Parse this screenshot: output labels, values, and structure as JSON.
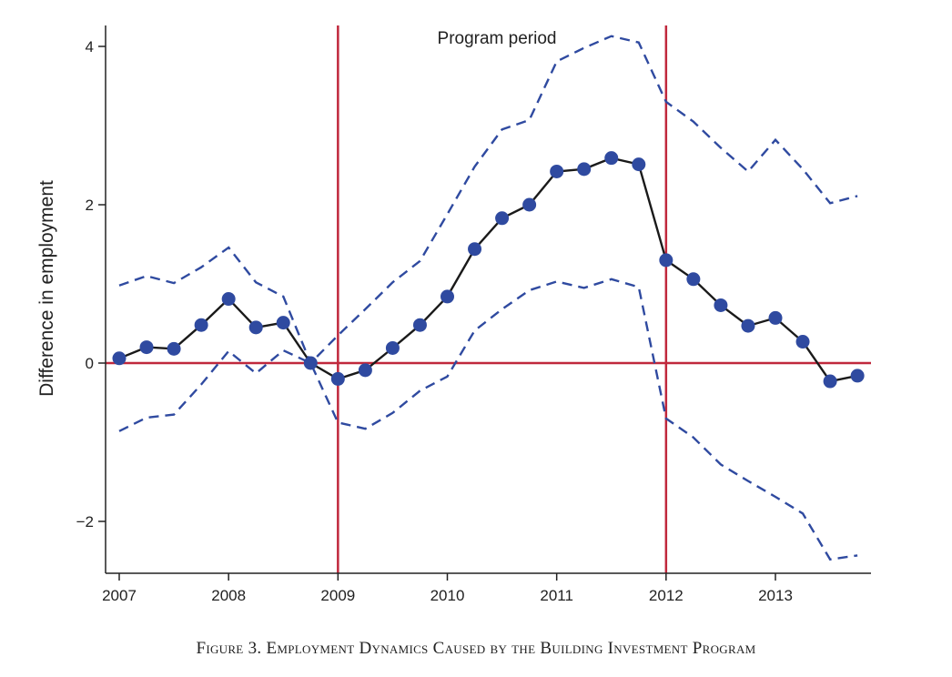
{
  "caption": "Figure 3. Employment Dynamics Caused by the Building Investment Program",
  "colors": {
    "point_line": "#1a1a1a",
    "point_fill": "#2f4aa0",
    "ci_line": "#2f4aa0",
    "reference_line": "#c0283c",
    "axis": "#222222"
  },
  "chart_data": {
    "type": "line",
    "ylabel": "Difference in employment",
    "xlabel": "",
    "annotation": "Program period",
    "xlim": [
      2006.9,
      2013.85
    ],
    "ylim": [
      -2.6,
      4.2
    ],
    "x_ticks": [
      {
        "value": 2007,
        "label": "2007"
      },
      {
        "value": 2008,
        "label": "2008"
      },
      {
        "value": 2009,
        "label": "2009"
      },
      {
        "value": 2010,
        "label": "2010"
      },
      {
        "value": 2011,
        "label": "2011"
      },
      {
        "value": 2012,
        "label": "2012"
      },
      {
        "value": 2013,
        "label": "2013"
      }
    ],
    "y_ticks": [
      {
        "value": -2,
        "label": "−2"
      },
      {
        "value": 0,
        "label": "0"
      },
      {
        "value": 2,
        "label": "2"
      },
      {
        "value": 4,
        "label": "4"
      }
    ],
    "vertical_lines": [
      2009,
      2012
    ],
    "horizontal_lines": [
      0
    ],
    "x": [
      2007,
      2007.25,
      2007.5,
      2007.75,
      2008,
      2008.25,
      2008.5,
      2008.75,
      2009,
      2009.25,
      2009.5,
      2009.75,
      2010,
      2010.25,
      2010.5,
      2010.75,
      2011,
      2011.25,
      2011.5,
      2011.75,
      2012,
      2012.25,
      2012.5,
      2012.75,
      2013,
      2013.25,
      2013.5,
      2013.75
    ],
    "series": [
      {
        "role": "estimate",
        "style": "solid-markers",
        "values": [
          0.06,
          0.2,
          0.18,
          0.48,
          0.81,
          0.45,
          0.51,
          0.0,
          -0.2,
          -0.09,
          0.19,
          0.48,
          0.84,
          1.44,
          1.83,
          2.0,
          2.42,
          2.45,
          2.59,
          2.51,
          1.3,
          1.06,
          0.73,
          0.47,
          0.57,
          0.27,
          -0.23,
          -0.16
        ]
      },
      {
        "role": "upper-bound",
        "style": "dashed",
        "values": [
          0.98,
          1.1,
          1.01,
          1.21,
          1.46,
          1.02,
          0.84,
          0.0,
          0.35,
          0.68,
          1.02,
          1.29,
          1.88,
          2.48,
          2.95,
          3.07,
          3.81,
          3.98,
          4.13,
          4.05,
          3.3,
          3.05,
          2.72,
          2.42,
          2.82,
          2.45,
          2.02,
          2.11
        ]
      },
      {
        "role": "lower-bound",
        "style": "dashed",
        "values": [
          -0.86,
          -0.69,
          -0.65,
          -0.27,
          0.15,
          -0.13,
          0.16,
          0.0,
          -0.75,
          -0.83,
          -0.63,
          -0.35,
          -0.17,
          0.41,
          0.68,
          0.92,
          1.03,
          0.95,
          1.06,
          0.96,
          -0.7,
          -0.94,
          -1.28,
          -1.49,
          -1.69,
          -1.9,
          -2.48,
          -2.43
        ]
      }
    ]
  }
}
